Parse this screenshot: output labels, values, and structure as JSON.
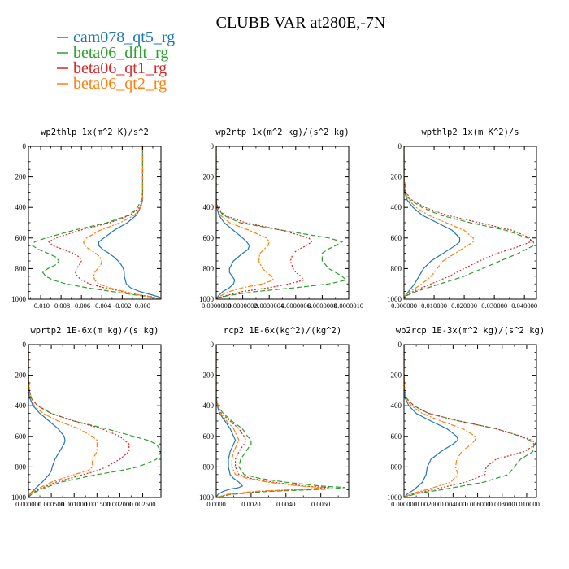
{
  "figure": {
    "title": "CLUBB VAR at280E,-7N"
  },
  "legend": [
    {
      "name": "cam078_qt5_rg",
      "color": "#1f77b4",
      "dash": "solid"
    },
    {
      "name": "beta06_dflt_rg",
      "color": "#2ca02c",
      "dash": "dashed"
    },
    {
      "name": "beta06_qt1_rg",
      "color": "#d62728",
      "dash": "dotted"
    },
    {
      "name": "beta06_qt2_rg",
      "color": "#ff7f0e",
      "dash": "dashdot"
    }
  ],
  "chart_data": [
    {
      "type": "line",
      "title": "wp2thlp 1x(m^2 K)/s^2",
      "xlim": [
        -0.0112,
        0.0018
      ],
      "ylim": [
        1000,
        0
      ],
      "xticks": [
        -0.01,
        -0.008,
        -0.006,
        -0.004,
        -0.002,
        0.0
      ],
      "xtick_labels": [
        "-0.010",
        "-0.008",
        "-0.006",
        "-0.004",
        "-0.002",
        "0.000"
      ],
      "yticks": [
        0,
        200,
        400,
        600,
        800,
        1000
      ],
      "ytick_labels": [
        "0",
        "200",
        "400",
        "600",
        "800",
        "1000"
      ],
      "y": [
        0,
        100,
        200,
        300,
        350,
        400,
        450,
        500,
        550,
        600,
        625,
        650,
        675,
        700,
        725,
        750,
        775,
        800,
        825,
        850,
        875,
        900,
        925,
        950,
        970,
        985,
        1000
      ],
      "series": [
        {
          "name": "cam078_qt5_rg",
          "values": [
            0,
            0,
            0,
            0,
            0,
            -0.0002,
            -0.0006,
            -0.0015,
            -0.0028,
            -0.0038,
            -0.0043,
            -0.0043,
            -0.0039,
            -0.0033,
            -0.0028,
            -0.0024,
            -0.0021,
            -0.0019,
            -0.0018,
            -0.0018,
            -0.0017,
            -0.0016,
            -0.0012,
            -0.0003,
            0.0008,
            0.0016,
            0.002
          ]
        },
        {
          "name": "beta06_dflt_rg",
          "values": [
            0,
            0,
            0,
            0,
            -0.0001,
            -0.0005,
            -0.0013,
            -0.0035,
            -0.0068,
            -0.0095,
            -0.0106,
            -0.0108,
            -0.0102,
            -0.0093,
            -0.0085,
            -0.0082,
            -0.0085,
            -0.0093,
            -0.0098,
            -0.0095,
            -0.0088,
            -0.0075,
            -0.0055,
            -0.003,
            -0.001,
            0.0008,
            0.0018
          ]
        },
        {
          "name": "beta06_qt1_rg",
          "values": [
            0,
            0,
            0,
            0,
            0,
            -0.0003,
            -0.0012,
            -0.0032,
            -0.0062,
            -0.0085,
            -0.0092,
            -0.0088,
            -0.0078,
            -0.0068,
            -0.0062,
            -0.006,
            -0.0062,
            -0.0065,
            -0.0066,
            -0.0064,
            -0.006,
            -0.0052,
            -0.0038,
            -0.002,
            -0.0005,
            0.001,
            0.0018
          ]
        },
        {
          "name": "beta06_qt2_rg",
          "values": [
            0,
            0,
            0,
            0,
            0,
            -0.0002,
            -0.0008,
            -0.0022,
            -0.0042,
            -0.0055,
            -0.0058,
            -0.0057,
            -0.0052,
            -0.0046,
            -0.0042,
            -0.004,
            -0.0041,
            -0.0044,
            -0.0047,
            -0.0048,
            -0.0047,
            -0.0043,
            -0.0033,
            -0.0018,
            -0.0005,
            0.0008,
            0.0018
          ]
        }
      ]
    },
    {
      "type": "line",
      "title": "wp2rtp 1x(m^2 kg)/(s^2 kg)",
      "xlim": [
        0.0,
        1e-06
      ],
      "ylim": [
        1000,
        0
      ],
      "xticks": [
        0.0,
        2e-07,
        4e-07,
        6e-07,
        8e-07,
        1e-06
      ],
      "xtick_labels": [
        "0.0000000",
        "0.0000002",
        "0.0000004",
        "0.0000006",
        "0.0000008",
        "0.0000010"
      ],
      "yticks": [
        0,
        200,
        400,
        600,
        800,
        1000
      ],
      "ytick_labels": [
        "0",
        "200",
        "400",
        "600",
        "800",
        "1000"
      ],
      "y": [
        0,
        200,
        300,
        350,
        400,
        450,
        500,
        550,
        600,
        625,
        650,
        675,
        700,
        750,
        800,
        825,
        850,
        875,
        900,
        925,
        950,
        975,
        990,
        1000
      ],
      "series": [
        {
          "name": "cam078_qt5_rg",
          "values": [
            0,
            0,
            0,
            0,
            5e-09,
            2e-08,
            6e-08,
            1.3e-07,
            2e-07,
            2.3e-07,
            2.5e-07,
            2.4e-07,
            2e-07,
            1.3e-07,
            1e-07,
            1e-07,
            1.2e-07,
            1.4e-07,
            1.3e-07,
            1e-07,
            5e-08,
            2e-08,
            5e-09,
            0
          ]
        },
        {
          "name": "beta06_dflt_rg",
          "values": [
            0,
            0,
            0,
            0,
            1e-08,
            5e-08,
            1.8e-07,
            5e-07,
            8.5e-07,
            9.5e-07,
            9e-07,
            8.4e-07,
            8e-07,
            8e-07,
            8.5e-07,
            9e-07,
            9.5e-07,
            9.8e-07,
            8.5e-07,
            6e-07,
            3e-07,
            1e-07,
            2e-08,
            0
          ]
        },
        {
          "name": "beta06_qt1_rg",
          "values": [
            0,
            0,
            0,
            0,
            1e-08,
            6e-08,
            2.2e-07,
            5e-07,
            7e-07,
            7.2e-07,
            6.8e-07,
            6.2e-07,
            5.8e-07,
            5.6e-07,
            5.8e-07,
            6e-07,
            6.4e-07,
            6.6e-07,
            5.5e-07,
            4e-07,
            2e-07,
            8e-08,
            2e-08,
            0
          ]
        },
        {
          "name": "beta06_qt2_rg",
          "values": [
            0,
            0,
            0,
            0,
            5e-09,
            3e-08,
            1e-07,
            2.5e-07,
            3.8e-07,
            4e-07,
            3.9e-07,
            3.6e-07,
            3.3e-07,
            3.2e-07,
            3.5e-07,
            3.8e-07,
            4.2e-07,
            4.3e-07,
            3.5e-07,
            2e-07,
            1e-07,
            4e-08,
            1e-08,
            0
          ]
        }
      ]
    },
    {
      "type": "line",
      "title": "wpthlp2 1x(m K^2)/s",
      "xlim": [
        0.0,
        0.044
      ],
      "ylim": [
        1000,
        0
      ],
      "xticks": [
        0.0,
        0.01,
        0.02,
        0.03,
        0.04
      ],
      "xtick_labels": [
        "0.000000",
        "0.010000",
        "0.020000",
        "0.030000",
        "0.040000"
      ],
      "yticks": [
        0,
        200,
        400,
        600,
        800,
        1000
      ],
      "ytick_labels": [
        "0",
        "200",
        "400",
        "600",
        "800",
        "1000"
      ],
      "y": [
        0,
        200,
        300,
        350,
        400,
        450,
        500,
        550,
        600,
        625,
        650,
        700,
        750,
        800,
        850,
        900,
        950,
        975,
        1000
      ],
      "series": [
        {
          "name": "cam078_qt5_rg",
          "values": [
            0,
            0,
            0.0002,
            0.001,
            0.003,
            0.006,
            0.011,
            0.016,
            0.0185,
            0.0185,
            0.017,
            0.013,
            0.009,
            0.0065,
            0.005,
            0.0035,
            0.0015,
            0.0005,
            0
          ]
        },
        {
          "name": "beta06_dflt_rg",
          "values": [
            0,
            0,
            0.0005,
            0.002,
            0.006,
            0.012,
            0.022,
            0.034,
            0.041,
            0.043,
            0.043,
            0.038,
            0.032,
            0.026,
            0.02,
            0.012,
            0.004,
            0.001,
            0
          ]
        },
        {
          "name": "beta06_qt1_rg",
          "values": [
            0,
            0,
            0.0006,
            0.0025,
            0.007,
            0.014,
            0.025,
            0.036,
            0.042,
            0.042,
            0.039,
            0.031,
            0.025,
            0.02,
            0.015,
            0.009,
            0.003,
            0.001,
            0
          ]
        },
        {
          "name": "beta06_qt2_rg",
          "values": [
            0,
            0,
            0.0003,
            0.0015,
            0.004,
            0.008,
            0.014,
            0.02,
            0.023,
            0.023,
            0.021,
            0.017,
            0.013,
            0.011,
            0.009,
            0.006,
            0.002,
            0.0005,
            0
          ]
        }
      ]
    },
    {
      "type": "line",
      "title": "wprtp2 1E-6x(m kg)/(s kg)",
      "xlim": [
        0.0,
        0.0029
      ],
      "ylim": [
        1000,
        0
      ],
      "xticks": [
        0.0,
        0.0005,
        0.001,
        0.0015,
        0.002,
        0.0025
      ],
      "xtick_labels": [
        "0.000000",
        "0.000500",
        "0.001000",
        "0.001500",
        "0.002000",
        "0.002500"
      ],
      "yticks": [
        0,
        200,
        400,
        600,
        800,
        1000
      ],
      "ytick_labels": [
        "0",
        "200",
        "400",
        "600",
        "800",
        "1000"
      ],
      "y": [
        0,
        200,
        300,
        350,
        400,
        450,
        500,
        550,
        600,
        625,
        650,
        700,
        750,
        800,
        825,
        850,
        900,
        950,
        975,
        1000
      ],
      "series": [
        {
          "name": "cam078_qt5_rg",
          "values": [
            0,
            0,
            1e-05,
            3e-05,
            0.0001,
            0.00025,
            0.00045,
            0.00065,
            0.00078,
            0.0008,
            0.00078,
            0.00068,
            0.00058,
            0.00052,
            0.0005,
            0.00045,
            0.0003,
            0.00012,
            4e-05,
            0
          ]
        },
        {
          "name": "beta06_dflt_rg",
          "values": [
            0,
            0,
            2e-05,
            6e-05,
            0.0002,
            0.0005,
            0.001,
            0.0017,
            0.0023,
            0.0026,
            0.0028,
            0.0029,
            0.0028,
            0.0024,
            0.002,
            0.0015,
            0.0007,
            0.00025,
            8e-05,
            0
          ]
        },
        {
          "name": "beta06_qt1_rg",
          "values": [
            0,
            0,
            2e-05,
            6e-05,
            0.0002,
            0.0005,
            0.001,
            0.0016,
            0.002,
            0.0021,
            0.0022,
            0.0022,
            0.002,
            0.0017,
            0.0015,
            0.0012,
            0.0006,
            0.0002,
            6e-05,
            0
          ]
        },
        {
          "name": "beta06_qt2_rg",
          "values": [
            0,
            0,
            1e-05,
            4e-05,
            0.00013,
            0.00032,
            0.00065,
            0.0011,
            0.0014,
            0.0015,
            0.0015,
            0.0015,
            0.0014,
            0.0014,
            0.0013,
            0.001,
            0.0005,
            0.00015,
            5e-05,
            0
          ]
        }
      ]
    },
    {
      "type": "line",
      "title": "rcp2 1E-6x(kg^2)/(kg^2)",
      "xlim": [
        0.0,
        0.0076
      ],
      "ylim": [
        1000,
        0
      ],
      "xticks": [
        0.0,
        0.002,
        0.004,
        0.006
      ],
      "xtick_labels": [
        "0.0000",
        "0.0020",
        "0.0040",
        "0.0060"
      ],
      "yticks": [
        0,
        200,
        400,
        600,
        800,
        1000
      ],
      "ytick_labels": [
        "0",
        "200",
        "400",
        "600",
        "800",
        "1000"
      ],
      "y": [
        0,
        200,
        300,
        350,
        400,
        450,
        500,
        550,
        600,
        625,
        650,
        700,
        750,
        800,
        850,
        875,
        900,
        925,
        935,
        945,
        960,
        980,
        1000
      ],
      "series": [
        {
          "name": "cam078_qt5_rg",
          "values": [
            0,
            0,
            0,
            0,
            5e-05,
            0.0002,
            0.0005,
            0.0008,
            0.001,
            0.0011,
            0.001,
            0.0008,
            0.0007,
            0.0007,
            0.0008,
            0.001,
            0.0013,
            0.0015,
            0.0013,
            0.0008,
            0.0004,
            0.0001,
            0
          ]
        },
        {
          "name": "beta06_dflt_rg",
          "values": [
            0,
            0,
            0,
            0,
            0.0001,
            0.0004,
            0.0009,
            0.0015,
            0.0018,
            0.002,
            0.002,
            0.0017,
            0.0014,
            0.0013,
            0.0016,
            0.0025,
            0.004,
            0.006,
            0.0074,
            0.0064,
            0.003,
            0.0008,
            0
          ]
        },
        {
          "name": "beta06_qt1_rg",
          "values": [
            0,
            0,
            0,
            0,
            0.0001,
            0.0003,
            0.0008,
            0.0013,
            0.0016,
            0.0017,
            0.0016,
            0.0013,
            0.0011,
            0.0011,
            0.0013,
            0.002,
            0.0033,
            0.005,
            0.0065,
            0.0055,
            0.0025,
            0.0007,
            0
          ]
        },
        {
          "name": "beta06_qt2_rg",
          "values": [
            0,
            0,
            0,
            0,
            7e-05,
            0.00025,
            0.0006,
            0.001,
            0.0012,
            0.0013,
            0.0012,
            0.001,
            0.0009,
            0.0009,
            0.0011,
            0.0018,
            0.003,
            0.0048,
            0.0062,
            0.0052,
            0.0022,
            0.0006,
            0
          ]
        }
      ]
    },
    {
      "type": "line",
      "title": "wp2rcp 1E-3x(m^2 kg)/(s^2 kg)",
      "xlim": [
        0.0,
        0.0108
      ],
      "ylim": [
        1000,
        0
      ],
      "xticks": [
        0.0,
        0.002,
        0.004,
        0.006,
        0.008,
        0.01
      ],
      "xtick_labels": [
        "0.000000",
        "0.002000",
        "0.004000",
        "0.006000",
        "0.008000",
        "0.010000"
      ],
      "yticks": [
        0,
        200,
        400,
        600,
        800,
        1000
      ],
      "ytick_labels": [
        "0",
        "200",
        "400",
        "600",
        "800",
        "1000"
      ],
      "y": [
        0,
        200,
        300,
        350,
        400,
        450,
        500,
        550,
        600,
        625,
        650,
        700,
        750,
        800,
        850,
        900,
        950,
        975,
        1000
      ],
      "series": [
        {
          "name": "cam078_qt5_rg",
          "values": [
            0,
            0,
            3e-05,
            0.0001,
            0.0004,
            0.001,
            0.0022,
            0.0035,
            0.0043,
            0.0044,
            0.004,
            0.003,
            0.0022,
            0.0019,
            0.0018,
            0.0015,
            0.0008,
            0.0003,
            0
          ]
        },
        {
          "name": "beta06_dflt_rg",
          "values": [
            0,
            0,
            5e-05,
            0.0002,
            0.0008,
            0.002,
            0.0045,
            0.0075,
            0.0095,
            0.0102,
            0.0106,
            0.0105,
            0.0095,
            0.009,
            0.0085,
            0.0065,
            0.003,
            0.001,
            0
          ]
        },
        {
          "name": "beta06_qt1_rg",
          "values": [
            0,
            0,
            5e-05,
            0.0002,
            0.0008,
            0.002,
            0.0045,
            0.0075,
            0.0096,
            0.0104,
            0.0108,
            0.0098,
            0.0075,
            0.0067,
            0.0066,
            0.005,
            0.0023,
            0.0008,
            0
          ]
        },
        {
          "name": "beta06_qt2_rg",
          "values": [
            0,
            0,
            4e-05,
            0.00015,
            0.0006,
            0.0015,
            0.003,
            0.0048,
            0.0058,
            0.0058,
            0.0055,
            0.0047,
            0.0043,
            0.0042,
            0.0044,
            0.0038,
            0.0018,
            0.0006,
            0
          ]
        }
      ]
    }
  ]
}
